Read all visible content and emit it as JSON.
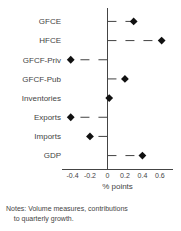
{
  "chart_data": {
    "type": "dot",
    "orientation": "horizontal",
    "categories": [
      "GFCE",
      "HFCE",
      "GFCF-Priv",
      "GFCF-Pub",
      "Inventories",
      "Exports",
      "Imports",
      "GDP"
    ],
    "values": [
      0.3,
      0.62,
      -0.42,
      0.2,
      0.02,
      -0.42,
      -0.2,
      0.4
    ],
    "xlim": [
      -0.52,
      0.75
    ],
    "xticks": [
      -0.4,
      -0.2,
      0,
      0.2,
      0.4,
      0.6
    ],
    "xlabel": "% points",
    "color": "#111111",
    "marker": "diamond",
    "line_style": "dashed",
    "grid": false,
    "annotations": [
      "Notes: Volume measures, contributions",
      "    to quarterly growth."
    ]
  }
}
